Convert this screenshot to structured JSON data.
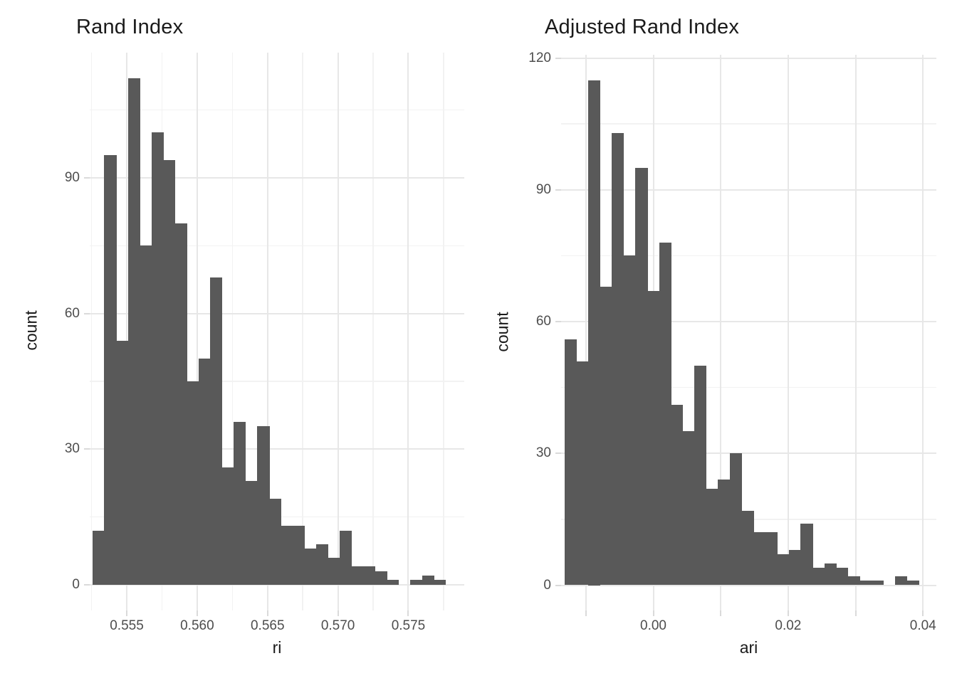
{
  "colors": {
    "bar_fill": "#595959",
    "grid_major": "#e7e7e7",
    "grid_minor": "#f2f2f2",
    "axis_tick": "#dadada",
    "tick_label": "#4d4d4d",
    "title_text": "#1a1a1a",
    "background": "#ffffff"
  },
  "chart_data": [
    {
      "type": "bar",
      "subtype": "histogram",
      "title": "Rand Index",
      "xlabel": "ri",
      "ylabel": "count",
      "legend": "none",
      "grid": true,
      "bin_start": 0.55257,
      "bin_width": 0.000836,
      "counts": [
        12,
        95,
        54,
        112,
        75,
        100,
        94,
        80,
        45,
        50,
        68,
        26,
        36,
        23,
        35,
        19,
        13,
        13,
        8,
        9,
        6,
        12,
        4,
        4,
        3,
        1,
        0,
        1,
        2,
        1
      ],
      "xlim": [
        0.55237,
        0.57897
      ],
      "ylim": [
        -5.7,
        117.7
      ],
      "x_ticks": {
        "breaks": [
          0.555,
          0.56,
          0.565,
          0.57,
          0.575
        ],
        "labels": [
          "0.555",
          "0.560",
          "0.565",
          "0.570",
          "0.575"
        ]
      },
      "x_minor_breaks": [
        0.5525,
        0.5575,
        0.5625,
        0.5675,
        0.5725,
        0.5775
      ],
      "y_ticks": {
        "breaks": [
          0,
          30,
          60,
          90
        ],
        "labels": [
          "0",
          "30",
          "60",
          "90"
        ]
      },
      "y_minor_breaks": [
        15,
        45,
        75,
        105
      ]
    },
    {
      "type": "bar",
      "subtype": "histogram",
      "title": "Adjusted Rand Index",
      "xlabel": "ari",
      "ylabel": "count",
      "legend": "none",
      "grid": true,
      "bin_start": -0.01315,
      "bin_width": 0.00175,
      "counts": [
        56,
        51,
        115,
        68,
        103,
        75,
        95,
        67,
        78,
        41,
        35,
        50,
        22,
        24,
        30,
        17,
        12,
        12,
        7,
        8,
        14,
        4,
        5,
        4,
        2,
        1,
        1,
        0,
        2,
        1
      ],
      "xlim": [
        -0.01368,
        0.04198
      ],
      "ylim": [
        -5.75,
        120.75
      ],
      "x_ticks": {
        "breaks": [
          -0.01,
          0.0,
          0.01,
          0.02,
          0.03,
          0.04
        ],
        "labels": [
          "",
          "0.00",
          "",
          "0.02",
          "",
          "0.04"
        ]
      },
      "x_minor_breaks": [],
      "y_ticks": {
        "breaks": [
          0,
          30,
          60,
          90,
          120
        ],
        "labels": [
          "0",
          "30",
          "60",
          "90",
          "120"
        ]
      },
      "y_minor_breaks": [
        15,
        45,
        75,
        105
      ]
    }
  ]
}
